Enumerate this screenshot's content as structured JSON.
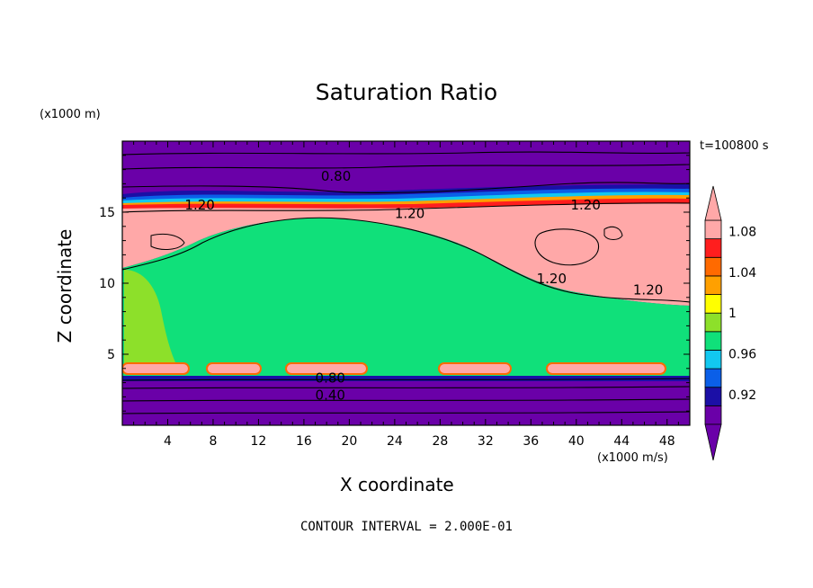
{
  "chart_data": {
    "type": "heatmap",
    "title": "Saturation Ratio",
    "xlabel": "X coordinate",
    "ylabel": "Z coordinate",
    "x_unit": "(x1000 m/s)",
    "y_unit": "(x1000 m)",
    "time_label": "t=100800 s",
    "footer": "CONTOUR INTERVAL = 2.000E-01",
    "xlim": [
      0,
      50
    ],
    "ylim": [
      0,
      20
    ],
    "x_ticks": [
      4,
      8,
      12,
      16,
      20,
      24,
      28,
      32,
      36,
      40,
      44,
      48
    ],
    "y_ticks": [
      5,
      10,
      15
    ],
    "colorbar": {
      "levels": [
        0.9,
        0.92,
        0.94,
        0.96,
        0.98,
        1.0,
        1.02,
        1.04,
        1.06,
        1.08,
        1.1
      ],
      "tick_labels": [
        "0.92",
        "0.96",
        "1",
        "1.04",
        "1.08"
      ],
      "tick_values": [
        0.92,
        0.96,
        1.0,
        1.04,
        1.08
      ],
      "colors": [
        "#6a00a8",
        "#1b0fa6",
        "#0b5fe8",
        "#12c8f0",
        "#10e07a",
        "#8de02a",
        "#ffff00",
        "#ffa000",
        "#ff6a00",
        "#ff1e1e",
        "#ffa8a8"
      ]
    },
    "contour_labels": [
      {
        "text": "0.80",
        "x": 17.5,
        "y": 17.2
      },
      {
        "text": "1.20",
        "x": 5.5,
        "y": 15.2
      },
      {
        "text": "1.20",
        "x": 24.0,
        "y": 14.6
      },
      {
        "text": "1.20",
        "x": 39.5,
        "y": 15.2
      },
      {
        "text": "1.20",
        "x": 36.5,
        "y": 10.0
      },
      {
        "text": "1.20",
        "x": 45.0,
        "y": 9.2
      },
      {
        "text": "0.80",
        "x": 17.0,
        "y": 3.0
      },
      {
        "text": "0.40",
        "x": 17.0,
        "y": 1.8
      }
    ]
  },
  "icons": {
    "colorbar_top": "triangle-up-icon",
    "colorbar_bottom": "triangle-down-icon"
  }
}
